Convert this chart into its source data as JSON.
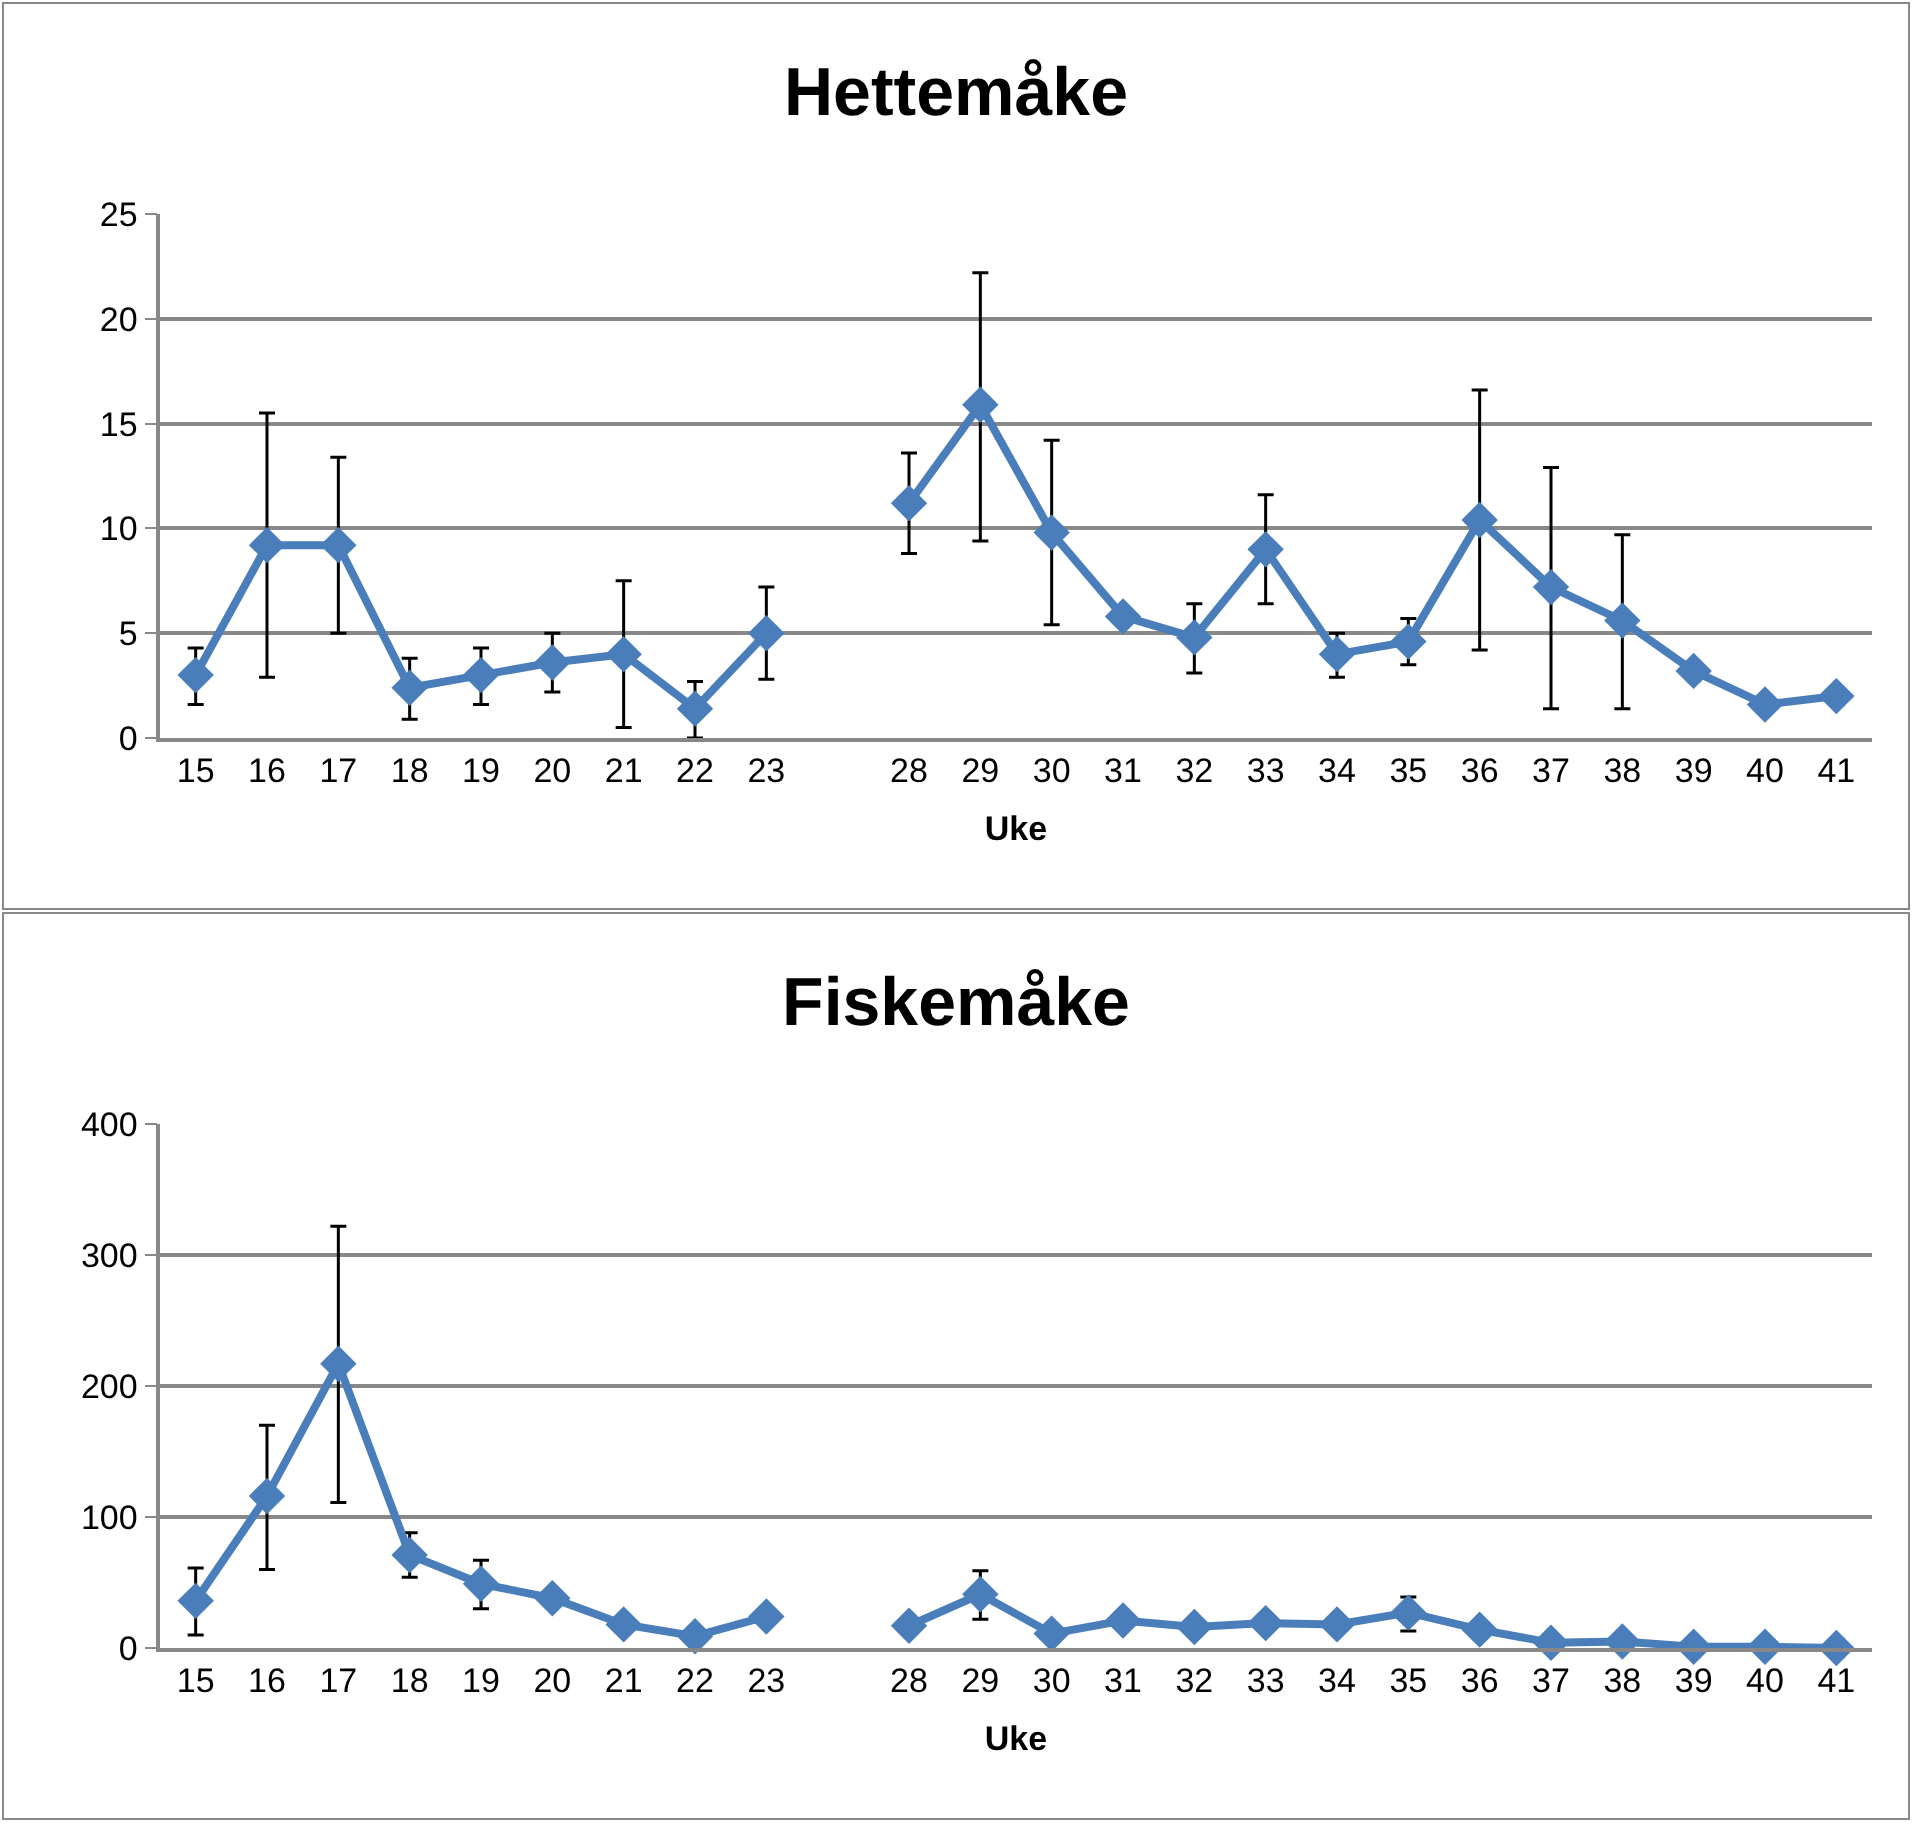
{
  "chart_data": [
    {
      "type": "line",
      "title": "Hettemåke",
      "xlabel": "Uke",
      "categories": [
        "15",
        "16",
        "17",
        "18",
        "19",
        "20",
        "21",
        "22",
        "23",
        null,
        "28",
        "29",
        "30",
        "31",
        "32",
        "33",
        "34",
        "35",
        "36",
        "37",
        "38",
        "39",
        "40",
        "41"
      ],
      "series": [
        {
          "color": "#4a7ebb",
          "values": [
            3.0,
            9.2,
            9.2,
            2.4,
            3.0,
            3.6,
            4.0,
            1.4,
            5.0,
            null,
            11.2,
            15.9,
            9.8,
            5.8,
            4.8,
            9.0,
            4.0,
            4.6,
            10.4,
            7.2,
            5.6,
            3.2,
            1.6,
            2.0
          ],
          "errors": [
            [
              1.6,
              4.3
            ],
            [
              2.9,
              15.5
            ],
            [
              5.0,
              13.4
            ],
            [
              0.9,
              3.8
            ],
            [
              1.6,
              4.3
            ],
            [
              2.2,
              5.0
            ],
            [
              0.5,
              7.5
            ],
            [
              0.0,
              2.7
            ],
            [
              2.8,
              7.2
            ],
            null,
            [
              8.8,
              13.6
            ],
            [
              9.4,
              22.2
            ],
            [
              5.4,
              14.2
            ],
            null,
            [
              3.1,
              6.4
            ],
            [
              6.4,
              11.6
            ],
            [
              2.9,
              5.0
            ],
            [
              3.5,
              5.7
            ],
            [
              4.2,
              16.6
            ],
            [
              1.4,
              12.9
            ],
            [
              1.4,
              9.7
            ],
            null,
            null,
            null
          ]
        }
      ],
      "ylim": [
        0,
        25
      ],
      "yticks": [
        0,
        5,
        10,
        15,
        20,
        25
      ],
      "grid": "y",
      "marker": "diamond",
      "line_style": "solid"
    },
    {
      "type": "line",
      "title": "Fiskemåke",
      "xlabel": "Uke",
      "categories": [
        "15",
        "16",
        "17",
        "18",
        "19",
        "20",
        "21",
        "22",
        "23",
        null,
        "28",
        "29",
        "30",
        "31",
        "32",
        "33",
        "34",
        "35",
        "36",
        "37",
        "38",
        "39",
        "40",
        "41"
      ],
      "series": [
        {
          "color": "#4a7ebb",
          "values": [
            36,
            116,
            217,
            71,
            49,
            38,
            18,
            9,
            24,
            null,
            17,
            41,
            11,
            21,
            16,
            19,
            18,
            27,
            14,
            4,
            5,
            1,
            1,
            0
          ],
          "errors": [
            [
              10,
              61
            ],
            [
              60,
              170
            ],
            [
              111,
              322
            ],
            [
              54,
              88
            ],
            [
              30,
              67
            ],
            null,
            null,
            null,
            null,
            null,
            null,
            [
              22,
              59
            ],
            null,
            null,
            null,
            null,
            null,
            [
              13,
              39
            ],
            null,
            null,
            null,
            null,
            null,
            null
          ]
        }
      ],
      "ylim": [
        0,
        400
      ],
      "yticks": [
        0,
        100,
        200,
        300,
        400
      ],
      "grid": "y",
      "marker": "diamond",
      "line_style": "solid"
    }
  ]
}
